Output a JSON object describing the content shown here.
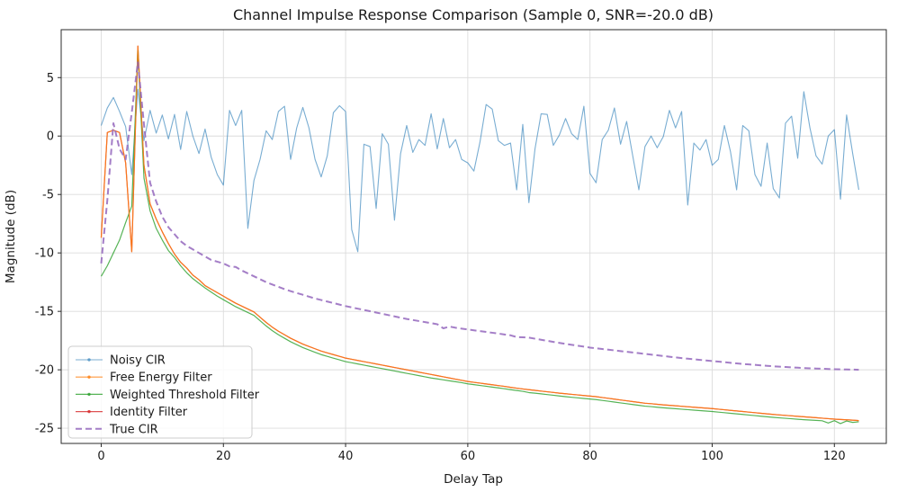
{
  "title": "Channel Impulse Response Comparison (Sample 0, SNR=-20.0 dB)",
  "axes": {
    "xlabel": "Delay Tap",
    "ylabel": "Magnitude (dB)",
    "xticks": [
      0,
      20,
      40,
      60,
      80,
      100,
      120
    ],
    "yticks": [
      5,
      0,
      -5,
      -10,
      -15,
      -20,
      -25
    ],
    "grid": true,
    "background": "#ffffff",
    "grid_color": "#dcdcdc",
    "spine_color": "#2b2b2b"
  },
  "legend": {
    "position": "lower left",
    "entries": [
      "Noisy CIR",
      "Free Energy Filter",
      "Weighted Threshold Filter",
      "Identity Filter",
      "True CIR"
    ]
  },
  "chart_data": {
    "type": "line",
    "xlabel": "Delay Tap",
    "ylabel": "Magnitude (dB)",
    "x_is_index": true,
    "x_range": [
      0,
      124
    ],
    "xlim": [
      -6.55,
      128.5
    ],
    "ylim": [
      -26.3,
      9.1
    ],
    "series": [
      {
        "name": "Noisy CIR",
        "color": "#1f77b4",
        "alpha": 0.6,
        "width": 1.1,
        "dash": null,
        "draw_order": 1,
        "values": [
          0.9,
          2.4,
          3.3,
          2.1,
          0.8,
          -3.3,
          4.0,
          -0.4,
          2.2,
          0.25,
          1.8,
          -0.25,
          1.85,
          -1.15,
          2.1,
          0.0,
          -1.5,
          0.6,
          -1.8,
          -3.3,
          -4.2,
          2.2,
          0.9,
          2.2,
          -7.9,
          -3.8,
          -2.0,
          0.45,
          -0.3,
          2.1,
          2.55,
          -2.0,
          0.7,
          2.45,
          0.7,
          -2.0,
          -3.5,
          -1.7,
          2.0,
          2.6,
          2.1,
          -8.0,
          -9.9,
          -0.7,
          -0.9,
          -6.2,
          0.2,
          -0.7,
          -7.2,
          -1.5,
          0.9,
          -1.4,
          -0.3,
          -0.8,
          1.9,
          -1.1,
          1.5,
          -1.0,
          -0.3,
          -2.0,
          -2.3,
          -3.0,
          -0.5,
          2.7,
          2.3,
          -0.4,
          -0.8,
          -0.6,
          -4.6,
          1.0,
          -5.7,
          -1.1,
          1.9,
          1.85,
          -0.8,
          0.1,
          1.5,
          0.2,
          -0.3,
          2.55,
          -3.2,
          -4.0,
          -0.3,
          0.5,
          2.4,
          -0.7,
          1.25,
          -1.7,
          -4.6,
          -0.9,
          0.0,
          -1.0,
          -0.05,
          2.2,
          0.7,
          2.1,
          -5.9,
          -0.6,
          -1.2,
          -0.3,
          -2.5,
          -2.0,
          0.9,
          -1.35,
          -4.6,
          0.9,
          0.45,
          -3.3,
          -4.3,
          -0.6,
          -4.5,
          -5.3,
          1.1,
          1.7,
          -1.9,
          3.8,
          0.7,
          -1.7,
          -2.4,
          0.0,
          0.55,
          -5.4,
          1.8,
          -1.5,
          -4.6
        ]
      },
      {
        "name": "Free Energy Filter",
        "color": "#ff7f0e",
        "alpha": 0.8,
        "width": 1.2,
        "dash": null,
        "draw_order": 4,
        "values": [
          -8.7,
          0.3,
          0.5,
          0.3,
          -2.3,
          -9.9,
          7.7,
          -2.5,
          -5.8,
          -7.1,
          -8.2,
          -9.2,
          -10.1,
          -10.8,
          -11.3,
          -11.9,
          -12.3,
          -12.8,
          -13.1,
          -13.4,
          -13.7,
          -14.0,
          -14.3,
          -14.55,
          -14.8,
          -15.05,
          -15.5,
          -15.95,
          -16.35,
          -16.7,
          -17.0,
          -17.3,
          -17.55,
          -17.8,
          -18.0,
          -18.2,
          -18.4,
          -18.55,
          -18.7,
          -18.85,
          -19.0,
          -19.1,
          -19.2,
          -19.3,
          -19.4,
          -19.5,
          -19.6,
          -19.7,
          -19.8,
          -19.9,
          -20.0,
          -20.1,
          -20.2,
          -20.3,
          -20.4,
          -20.5,
          -20.6,
          -20.7,
          -20.8,
          -20.9,
          -21.0,
          -21.07,
          -21.14,
          -21.21,
          -21.28,
          -21.35,
          -21.42,
          -21.5,
          -21.57,
          -21.64,
          -21.7,
          -21.76,
          -21.82,
          -21.88,
          -21.94,
          -22.0,
          -22.05,
          -22.1,
          -22.15,
          -22.2,
          -22.25,
          -22.3,
          -22.37,
          -22.44,
          -22.51,
          -22.58,
          -22.65,
          -22.72,
          -22.79,
          -22.86,
          -22.9,
          -22.95,
          -23.0,
          -23.04,
          -23.08,
          -23.12,
          -23.16,
          -23.2,
          -23.24,
          -23.28,
          -23.32,
          -23.37,
          -23.42,
          -23.47,
          -23.52,
          -23.57,
          -23.62,
          -23.67,
          -23.72,
          -23.77,
          -23.82,
          -23.86,
          -23.9,
          -23.94,
          -23.98,
          -24.02,
          -24.06,
          -24.1,
          -24.14,
          -24.18,
          -24.22,
          -24.25,
          -24.28,
          -24.31,
          -24.35
        ]
      },
      {
        "name": "Weighted Threshold Filter",
        "color": "#2ca02c",
        "alpha": 0.8,
        "width": 1.2,
        "dash": null,
        "draw_order": 3,
        "values": [
          -12.0,
          -11.1,
          -10.0,
          -8.9,
          -7.4,
          -6.0,
          7.3,
          -3.6,
          -6.4,
          -7.9,
          -8.9,
          -9.8,
          -10.4,
          -11.1,
          -11.7,
          -12.2,
          -12.6,
          -13.0,
          -13.35,
          -13.7,
          -14.0,
          -14.3,
          -14.6,
          -14.85,
          -15.1,
          -15.35,
          -15.8,
          -16.25,
          -16.65,
          -17.0,
          -17.3,
          -17.6,
          -17.85,
          -18.1,
          -18.3,
          -18.5,
          -18.7,
          -18.85,
          -19.0,
          -19.15,
          -19.3,
          -19.4,
          -19.5,
          -19.6,
          -19.7,
          -19.8,
          -19.9,
          -20.0,
          -20.1,
          -20.2,
          -20.3,
          -20.4,
          -20.5,
          -20.6,
          -20.7,
          -20.78,
          -20.86,
          -20.94,
          -21.02,
          -21.1,
          -21.2,
          -21.27,
          -21.34,
          -21.41,
          -21.48,
          -21.55,
          -21.62,
          -21.7,
          -21.77,
          -21.84,
          -21.95,
          -22.0,
          -22.06,
          -22.12,
          -22.18,
          -22.24,
          -22.3,
          -22.35,
          -22.4,
          -22.45,
          -22.5,
          -22.55,
          -22.62,
          -22.69,
          -22.76,
          -22.83,
          -22.9,
          -22.97,
          -23.04,
          -23.11,
          -23.15,
          -23.2,
          -23.25,
          -23.29,
          -23.33,
          -23.37,
          -23.41,
          -23.45,
          -23.49,
          -23.53,
          -23.57,
          -23.62,
          -23.67,
          -23.72,
          -23.77,
          -23.82,
          -23.87,
          -23.92,
          -23.97,
          -24.02,
          -24.07,
          -24.11,
          -24.15,
          -24.19,
          -24.23,
          -24.27,
          -24.3,
          -24.33,
          -24.36,
          -24.55,
          -24.35,
          -24.6,
          -24.38,
          -24.5,
          -24.45
        ]
      },
      {
        "name": "Identity Filter",
        "color": "#d62728",
        "alpha": 0.8,
        "width": 1.2,
        "dash": null,
        "draw_order": 2,
        "values": [
          -8.7,
          0.3,
          0.5,
          0.3,
          -2.3,
          -9.9,
          7.7,
          -2.5,
          -5.8,
          -7.1,
          -8.2,
          -9.2,
          -10.1,
          -10.8,
          -11.3,
          -11.9,
          -12.3,
          -12.8,
          -13.1,
          -13.4,
          -13.7,
          -14.0,
          -14.3,
          -14.55,
          -14.8,
          -15.05,
          -15.5,
          -15.95,
          -16.35,
          -16.7,
          -17.0,
          -17.3,
          -17.55,
          -17.8,
          -18.0,
          -18.2,
          -18.4,
          -18.55,
          -18.7,
          -18.85,
          -19.0,
          -19.1,
          -19.2,
          -19.3,
          -19.4,
          -19.5,
          -19.6,
          -19.7,
          -19.8,
          -19.9,
          -20.0,
          -20.1,
          -20.2,
          -20.3,
          -20.4,
          -20.5,
          -20.6,
          -20.7,
          -20.8,
          -20.9,
          -21.0,
          -21.07,
          -21.14,
          -21.21,
          -21.28,
          -21.35,
          -21.42,
          -21.5,
          -21.57,
          -21.64,
          -21.7,
          -21.76,
          -21.82,
          -21.88,
          -21.94,
          -22.0,
          -22.05,
          -22.1,
          -22.15,
          -22.2,
          -22.25,
          -22.3,
          -22.37,
          -22.44,
          -22.51,
          -22.58,
          -22.65,
          -22.72,
          -22.79,
          -22.86,
          -22.9,
          -22.95,
          -23.0,
          -23.04,
          -23.08,
          -23.12,
          -23.16,
          -23.2,
          -23.24,
          -23.28,
          -23.32,
          -23.37,
          -23.42,
          -23.47,
          -23.52,
          -23.57,
          -23.62,
          -23.67,
          -23.72,
          -23.77,
          -23.82,
          -23.86,
          -23.9,
          -23.94,
          -23.98,
          -24.02,
          -24.06,
          -24.1,
          -24.14,
          -24.18,
          -24.22,
          -24.25,
          -24.28,
          -24.31,
          -24.35
        ]
      },
      {
        "name": "True CIR",
        "color": "#9467bd",
        "alpha": 0.85,
        "width": 2.0,
        "dash": [
          7,
          4
        ],
        "draw_order": 5,
        "values": [
          -10.9,
          -5.5,
          1.1,
          -1.1,
          -2.0,
          2.0,
          6.3,
          1.0,
          -4.0,
          -5.6,
          -6.9,
          -7.8,
          -8.4,
          -9.0,
          -9.4,
          -9.7,
          -10.0,
          -10.3,
          -10.6,
          -10.75,
          -10.9,
          -11.15,
          -11.2,
          -11.5,
          -11.75,
          -12.0,
          -12.25,
          -12.5,
          -12.7,
          -12.9,
          -13.1,
          -13.27,
          -13.43,
          -13.58,
          -13.74,
          -13.9,
          -14.03,
          -14.16,
          -14.29,
          -14.42,
          -14.55,
          -14.66,
          -14.77,
          -14.88,
          -14.99,
          -15.1,
          -15.21,
          -15.32,
          -15.43,
          -15.54,
          -15.65,
          -15.74,
          -15.83,
          -15.92,
          -16.01,
          -16.1,
          -16.45,
          -16.3,
          -16.4,
          -16.48,
          -16.55,
          -16.62,
          -16.69,
          -16.76,
          -16.83,
          -16.9,
          -16.98,
          -17.05,
          -17.2,
          -17.22,
          -17.25,
          -17.34,
          -17.43,
          -17.52,
          -17.61,
          -17.7,
          -17.78,
          -17.86,
          -17.94,
          -18.02,
          -18.1,
          -18.16,
          -18.22,
          -18.28,
          -18.34,
          -18.4,
          -18.46,
          -18.52,
          -18.58,
          -18.64,
          -18.7,
          -18.76,
          -18.82,
          -18.88,
          -18.94,
          -19.0,
          -19.05,
          -19.1,
          -19.15,
          -19.2,
          -19.25,
          -19.3,
          -19.35,
          -19.4,
          -19.45,
          -19.5,
          -19.54,
          -19.58,
          -19.62,
          -19.66,
          -19.7,
          -19.73,
          -19.76,
          -19.79,
          -19.82,
          -19.85,
          -19.87,
          -19.89,
          -19.91,
          -19.93,
          -19.95,
          -19.96,
          -19.97,
          -19.98,
          -20.0
        ]
      }
    ]
  }
}
